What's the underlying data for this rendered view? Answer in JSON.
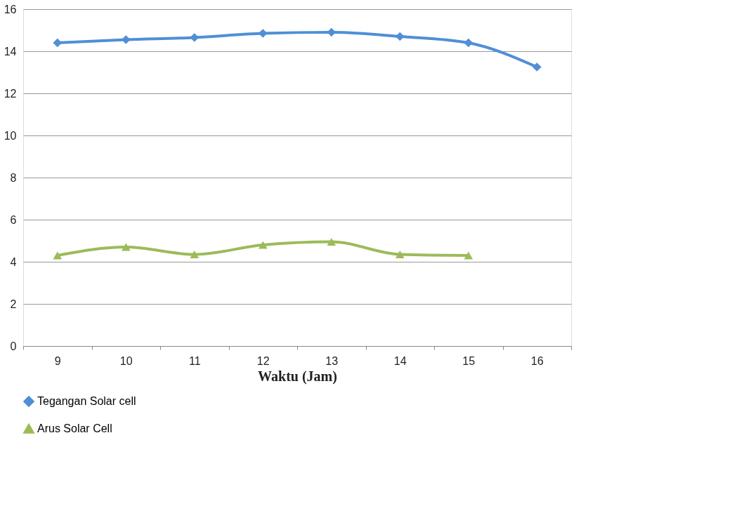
{
  "chart_data": {
    "type": "line",
    "xlabel": "Waktu (Jam)",
    "categories": [
      "9",
      "10",
      "11",
      "12",
      "13",
      "14",
      "15",
      "16"
    ],
    "series": [
      {
        "name": "Tegangan Solar cell",
        "color": "#4f8fd6",
        "marker": "diamond",
        "values": [
          14.4,
          14.55,
          14.65,
          14.85,
          14.9,
          14.7,
          14.4,
          13.25
        ]
      },
      {
        "name": "Arus Solar Cell",
        "color": "#9bbb59",
        "marker": "triangle",
        "values": [
          4.3,
          4.7,
          4.35,
          4.8,
          4.95,
          4.35,
          4.3,
          null
        ]
      }
    ],
    "ylim": [
      0,
      16
    ],
    "yticks": [
      0,
      2,
      4,
      6,
      8,
      10,
      12,
      14,
      16
    ],
    "grid": "y",
    "legend": "bottom left",
    "line_style": "solid"
  }
}
